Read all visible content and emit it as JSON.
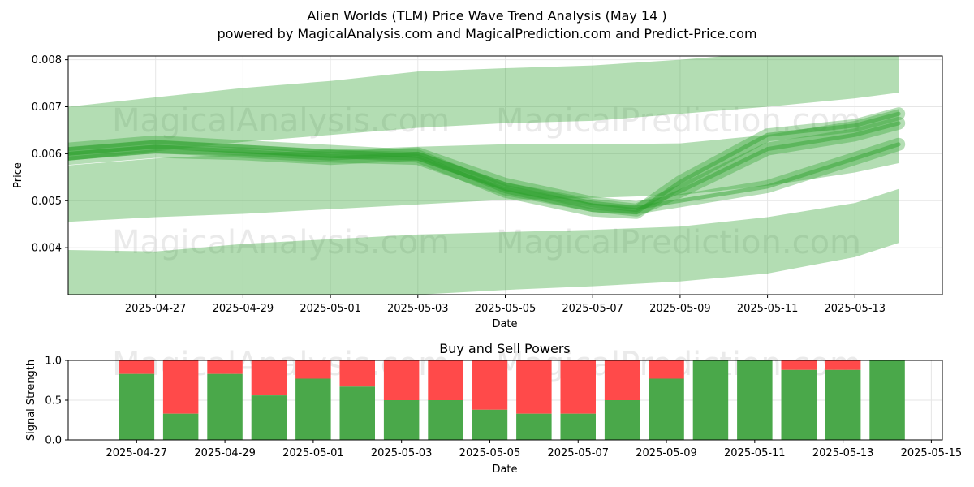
{
  "title": "Alien Worlds (TLM) Price Wave Trend Analysis (May 14 )",
  "subtitle": "powered by MagicalAnalysis.com and MagicalPrediction.com and Predict-Price.com",
  "watermarks": [
    "MagicalAnalysis.com",
    "MagicalPrediction.com"
  ],
  "colors": {
    "band": "#2ca02c",
    "buy": "#4aa84a",
    "sell": "#ff4a4a",
    "grid": "#e6e6e6",
    "watermark": "#d8d8d8"
  },
  "chart_data": [
    {
      "type": "area",
      "title": "",
      "xlabel": "Date",
      "ylabel": "Price",
      "x_ticks": [
        "2025-04-27",
        "2025-04-29",
        "2025-05-01",
        "2025-05-03",
        "2025-05-05",
        "2025-05-07",
        "2025-05-09",
        "2025-05-11",
        "2025-05-13"
      ],
      "y_ticks": [
        "0.004",
        "0.005",
        "0.006",
        "0.007",
        "0.008"
      ],
      "x_range": [
        "2025-04-25",
        "2025-05-15"
      ],
      "ylim": [
        0.003,
        0.00808
      ],
      "grid": true,
      "bands": [
        {
          "x": [
            "2025-04-25",
            "2025-04-27",
            "2025-04-29",
            "2025-05-01",
            "2025-05-03",
            "2025-05-05",
            "2025-05-07",
            "2025-05-09",
            "2025-05-11",
            "2025-05-13",
            "2025-05-14"
          ],
          "upper": [
            0.007,
            0.0072,
            0.0074,
            0.00755,
            0.00775,
            0.00782,
            0.00788,
            0.008,
            0.00815,
            0.00825,
            0.0083
          ],
          "lower": [
            0.00585,
            0.00605,
            0.00625,
            0.0064,
            0.00655,
            0.00665,
            0.0067,
            0.00685,
            0.007,
            0.00718,
            0.0073
          ]
        },
        {
          "x": [
            "2025-04-25",
            "2025-04-27",
            "2025-04-29",
            "2025-05-01",
            "2025-05-03",
            "2025-05-05",
            "2025-05-07",
            "2025-05-09",
            "2025-05-11",
            "2025-05-13",
            "2025-05-14"
          ],
          "upper": [
            0.00575,
            0.0059,
            0.006,
            0.00608,
            0.00615,
            0.0062,
            0.0062,
            0.00622,
            0.0064,
            0.0067,
            0.00695
          ],
          "lower": [
            0.00455,
            0.00465,
            0.00472,
            0.00482,
            0.00492,
            0.00502,
            0.00506,
            0.00512,
            0.00532,
            0.0056,
            0.0058
          ]
        },
        {
          "x": [
            "2025-04-25",
            "2025-04-27",
            "2025-04-29",
            "2025-05-01",
            "2025-05-03",
            "2025-05-05",
            "2025-05-07",
            "2025-05-09",
            "2025-05-11",
            "2025-05-13",
            "2025-05-14"
          ],
          "upper": [
            0.00395,
            0.00392,
            0.00408,
            0.00418,
            0.00428,
            0.00433,
            0.00438,
            0.00445,
            0.00465,
            0.00495,
            0.00525
          ],
          "lower": [
            0.003,
            0.00298,
            0.00298,
            0.00298,
            0.003,
            0.0031,
            0.00318,
            0.00328,
            0.00345,
            0.0038,
            0.0041
          ]
        }
      ],
      "wave_lines": [
        {
          "x": [
            "2025-04-25",
            "2025-04-27",
            "2025-04-29",
            "2025-05-01",
            "2025-05-03",
            "2025-05-05",
            "2025-05-07",
            "2025-05-08",
            "2025-05-09",
            "2025-05-11",
            "2025-05-13",
            "2025-05-14"
          ],
          "y": [
            0.006,
            0.00615,
            0.00605,
            0.00595,
            0.0059,
            0.00525,
            0.0049,
            0.0048,
            0.0052,
            0.0061,
            0.0064,
            0.00665
          ]
        },
        {
          "x": [
            "2025-04-25",
            "2025-04-27",
            "2025-04-29",
            "2025-05-01",
            "2025-05-03",
            "2025-05-05",
            "2025-05-07",
            "2025-05-08",
            "2025-05-09",
            "2025-05-11",
            "2025-05-13",
            "2025-05-14"
          ],
          "y": [
            0.0059,
            0.00605,
            0.006,
            0.0059,
            0.006,
            0.00535,
            0.00495,
            0.00485,
            0.005,
            0.0053,
            0.0059,
            0.0062
          ]
        },
        {
          "x": [
            "2025-04-25",
            "2025-04-27",
            "2025-04-29",
            "2025-05-01",
            "2025-05-03",
            "2025-05-05",
            "2025-05-07",
            "2025-05-08",
            "2025-05-09",
            "2025-05-11",
            "2025-05-13",
            "2025-05-14"
          ],
          "y": [
            0.0061,
            0.00625,
            0.00615,
            0.00605,
            0.00595,
            0.0052,
            0.0048,
            0.00475,
            0.0054,
            0.0064,
            0.0066,
            0.00685
          ]
        }
      ]
    },
    {
      "type": "bar",
      "title": "Buy and Sell Powers",
      "xlabel": "Date",
      "ylabel": "Signal Strength",
      "x_ticks": [
        "2025-04-27",
        "2025-04-29",
        "2025-05-01",
        "2025-05-03",
        "2025-05-05",
        "2025-05-07",
        "2025-05-09",
        "2025-05-11",
        "2025-05-13",
        "2025-05-15"
      ],
      "y_ticks": [
        "0.0",
        "0.5",
        "1.0"
      ],
      "x_range": [
        "2025-04-25.45",
        "2025-05-15.25"
      ],
      "ylim": [
        0,
        1
      ],
      "grid": true,
      "categories": [
        "2025-04-27",
        "2025-04-28",
        "2025-04-29",
        "2025-04-30",
        "2025-05-01",
        "2025-05-02",
        "2025-05-03",
        "2025-05-04",
        "2025-05-05",
        "2025-05-06",
        "2025-05-07",
        "2025-05-08",
        "2025-05-09",
        "2025-05-10",
        "2025-05-11",
        "2025-05-12",
        "2025-05-13",
        "2025-05-14"
      ],
      "series": [
        {
          "name": "",
          "values": [
            0.83,
            0.33,
            0.83,
            0.56,
            0.77,
            0.67,
            0.5,
            0.5,
            0.38,
            0.33,
            0.33,
            0.5,
            0.77,
            1.0,
            1.0,
            0.88,
            0.88,
            1.0
          ]
        }
      ]
    }
  ]
}
